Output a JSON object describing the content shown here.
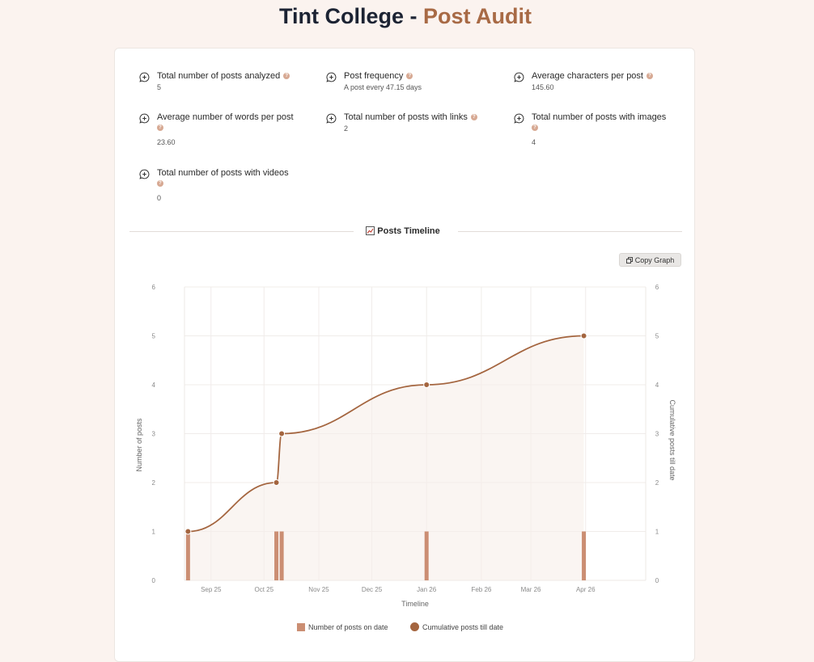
{
  "header": {
    "title_prefix": "Tint College - ",
    "title_accent": "Post Audit"
  },
  "stats": [
    {
      "label": "Total number of posts analyzed",
      "value": "5"
    },
    {
      "label": "Post frequency",
      "value": "A post every 47.15 days"
    },
    {
      "label": "Average characters per post",
      "value": "145.60"
    },
    {
      "label": "Average number of words per post",
      "value": "23.60"
    },
    {
      "label": "Total number of posts with links",
      "value": "2"
    },
    {
      "label": "Total number of posts with images",
      "value": "4"
    },
    {
      "label": "Total number of posts with videos",
      "value": "0"
    }
  ],
  "section": {
    "title": "Posts Timeline"
  },
  "copy_button": {
    "label": "Copy Graph"
  },
  "colors": {
    "accent": "#a86a45",
    "bar": "#cb8e73",
    "line": "#a4653f",
    "help_icon": "#d7a993"
  },
  "chart_data": {
    "type": "bar+line",
    "xlabel": "Timeline",
    "ylabel_left": "Number of posts",
    "ylabel_right": "Cumulative posts till date",
    "ylim_left": [
      0,
      6
    ],
    "ylim_right": [
      0,
      6
    ],
    "yticks": [
      "0",
      "1",
      "2",
      "3",
      "4",
      "5",
      "6"
    ],
    "xlim": [
      "2025-08-17",
      "2026-05-05"
    ],
    "xticks": [
      {
        "date": "2025-09-01",
        "label": "Sep 25"
      },
      {
        "date": "2025-10-01",
        "label": "Oct 25"
      },
      {
        "date": "2025-11-01",
        "label": "Nov 25"
      },
      {
        "date": "2025-12-01",
        "label": "Dec 25"
      },
      {
        "date": "2026-01-01",
        "label": "Jan 26"
      },
      {
        "date": "2026-02-01",
        "label": "Feb 26"
      },
      {
        "date": "2026-03-01",
        "label": "Mar 26"
      },
      {
        "date": "2026-04-01",
        "label": "Apr 26"
      }
    ],
    "grid": true,
    "legend_position": "bottom",
    "series": [
      {
        "name": "Number of posts on date",
        "type": "bar",
        "points": [
          {
            "x": "2025-08-19",
            "y": 1
          },
          {
            "x": "2025-10-08",
            "y": 1
          },
          {
            "x": "2025-10-11",
            "y": 1
          },
          {
            "x": "2026-01-01",
            "y": 1
          },
          {
            "x": "2026-03-31",
            "y": 1
          }
        ]
      },
      {
        "name": "Cumulative posts till date",
        "type": "line",
        "points": [
          {
            "x": "2025-08-19",
            "y": 1
          },
          {
            "x": "2025-10-08",
            "y": 2
          },
          {
            "x": "2025-10-11",
            "y": 3
          },
          {
            "x": "2026-01-01",
            "y": 4
          },
          {
            "x": "2026-03-31",
            "y": 5
          }
        ]
      }
    ]
  }
}
